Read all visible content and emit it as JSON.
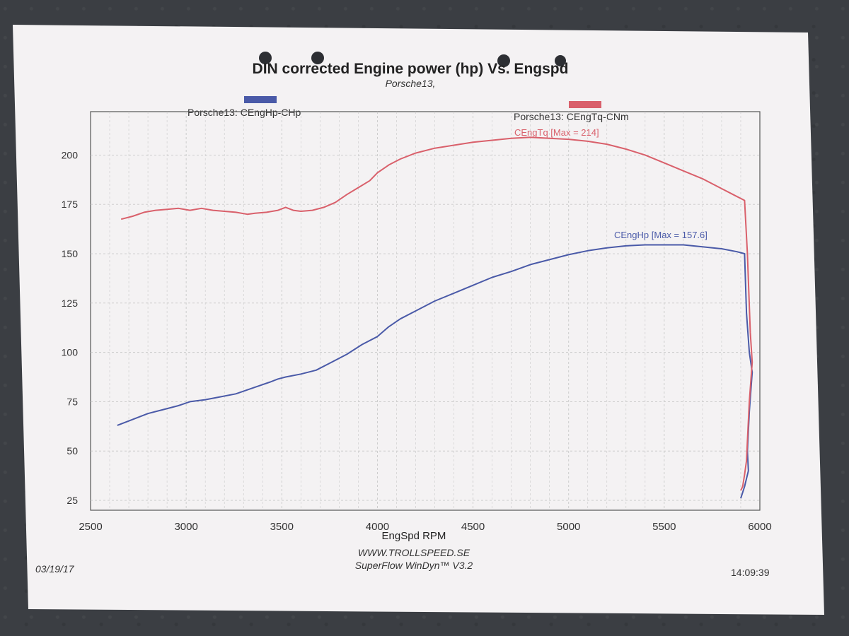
{
  "page": {
    "title": "DIN corrected Engine power (hp) Vs. Engspd",
    "subtitle": "Porsche13,",
    "footer_site": "WWW.TROLLSPEED.SE",
    "footer_software": "SuperFlow WinDyn™ V3.2",
    "date": "03/19/17",
    "time": "14:09:39"
  },
  "colors": {
    "hp": "#4a5aa8",
    "tq": "#d9606b",
    "paper": "#f4f2f3",
    "grid": "#c9c9c9"
  },
  "chart_data": {
    "type": "line",
    "title": "DIN corrected Engine power (hp) Vs. Engspd",
    "subtitle": "Porsche13,",
    "xlabel": "EngSpd RPM",
    "ylabel": "",
    "xlim": [
      2500,
      6000
    ],
    "ylim": [
      20,
      222
    ],
    "xticks": [
      2500,
      3000,
      3500,
      4000,
      4500,
      5000,
      5500,
      6000
    ],
    "yticks": [
      25,
      50,
      75,
      100,
      125,
      150,
      175,
      200
    ],
    "grid": true,
    "legend": [
      {
        "label": "Porsche13: CEngHp-CHp",
        "color": "#4a5aa8"
      },
      {
        "label": "Porsche13: CEngTq-CNm",
        "color": "#d9606b"
      }
    ],
    "series": [
      {
        "name": "Porsche13: CEngHp-CHp",
        "annotation": "CEngHp [Max = 157.6]",
        "color": "#4a5aa8",
        "points": [
          [
            2640,
            63
          ],
          [
            2720,
            66
          ],
          [
            2800,
            69
          ],
          [
            2880,
            71
          ],
          [
            2960,
            73
          ],
          [
            3020,
            75
          ],
          [
            3100,
            76
          ],
          [
            3180,
            77.5
          ],
          [
            3260,
            79
          ],
          [
            3320,
            81
          ],
          [
            3380,
            83
          ],
          [
            3440,
            85
          ],
          [
            3480,
            86.5
          ],
          [
            3520,
            87.5
          ],
          [
            3600,
            89
          ],
          [
            3680,
            91
          ],
          [
            3760,
            95
          ],
          [
            3840,
            99
          ],
          [
            3920,
            104
          ],
          [
            4000,
            108
          ],
          [
            4060,
            113
          ],
          [
            4120,
            117
          ],
          [
            4200,
            121
          ],
          [
            4300,
            126
          ],
          [
            4400,
            130
          ],
          [
            4500,
            134
          ],
          [
            4600,
            138
          ],
          [
            4700,
            141
          ],
          [
            4800,
            144.5
          ],
          [
            4900,
            147
          ],
          [
            5000,
            149.5
          ],
          [
            5100,
            151.5
          ],
          [
            5200,
            153
          ],
          [
            5300,
            154
          ],
          [
            5400,
            154.5
          ],
          [
            5500,
            154.5
          ],
          [
            5600,
            154.5
          ],
          [
            5700,
            153.5
          ],
          [
            5800,
            152.5
          ],
          [
            5880,
            151
          ],
          [
            5920,
            150
          ],
          [
            5930,
            120
          ],
          [
            5945,
            100
          ],
          [
            5960,
            90
          ],
          [
            5945,
            70
          ],
          [
            5935,
            50
          ],
          [
            5940,
            40
          ],
          [
            5920,
            32
          ],
          [
            5900,
            26
          ]
        ]
      },
      {
        "name": "Porsche13: CEngTq-CNm",
        "annotation": "CEngTq [Max = 214]",
        "color": "#d9606b",
        "points": [
          [
            2660,
            167.5
          ],
          [
            2720,
            169
          ],
          [
            2780,
            171
          ],
          [
            2840,
            172
          ],
          [
            2900,
            172.5
          ],
          [
            2960,
            173
          ],
          [
            3020,
            172
          ],
          [
            3080,
            173
          ],
          [
            3140,
            172
          ],
          [
            3200,
            171.5
          ],
          [
            3260,
            171
          ],
          [
            3320,
            170
          ],
          [
            3360,
            170.5
          ],
          [
            3420,
            171
          ],
          [
            3480,
            172
          ],
          [
            3520,
            173.5
          ],
          [
            3560,
            172
          ],
          [
            3600,
            171.5
          ],
          [
            3660,
            172
          ],
          [
            3720,
            173.5
          ],
          [
            3780,
            176
          ],
          [
            3840,
            180
          ],
          [
            3900,
            183.5
          ],
          [
            3960,
            187
          ],
          [
            4000,
            191
          ],
          [
            4060,
            195
          ],
          [
            4120,
            198
          ],
          [
            4200,
            201
          ],
          [
            4300,
            203.5
          ],
          [
            4400,
            205
          ],
          [
            4500,
            206.5
          ],
          [
            4600,
            207.5
          ],
          [
            4700,
            208.5
          ],
          [
            4800,
            209
          ],
          [
            4900,
            208.5
          ],
          [
            5000,
            208
          ],
          [
            5100,
            207
          ],
          [
            5200,
            205.5
          ],
          [
            5300,
            203
          ],
          [
            5400,
            200
          ],
          [
            5500,
            196
          ],
          [
            5600,
            192
          ],
          [
            5700,
            188
          ],
          [
            5800,
            183
          ],
          [
            5860,
            180
          ],
          [
            5920,
            177
          ],
          [
            5935,
            150
          ],
          [
            5950,
            110
          ],
          [
            5960,
            95
          ],
          [
            5945,
            75
          ],
          [
            5935,
            55
          ],
          [
            5930,
            45
          ],
          [
            5920,
            38
          ],
          [
            5910,
            32
          ],
          [
            5900,
            30
          ]
        ]
      }
    ]
  }
}
